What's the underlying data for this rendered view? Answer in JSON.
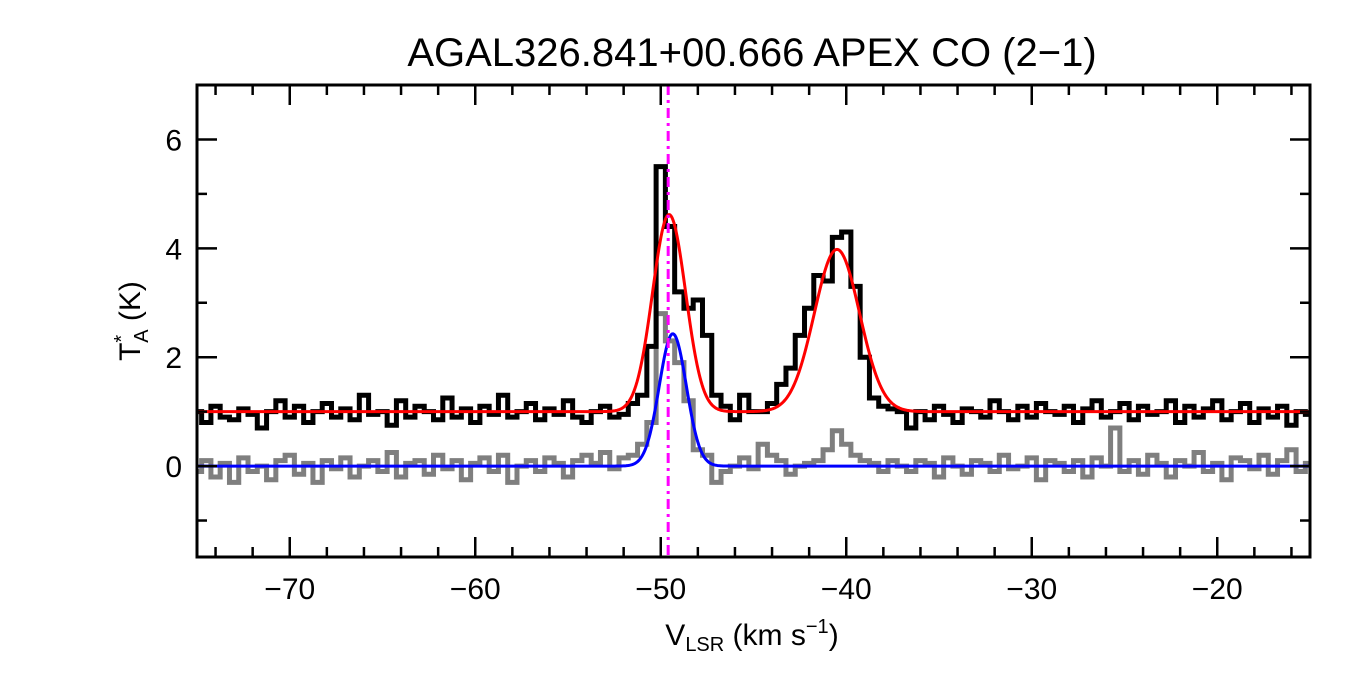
{
  "chart_data": {
    "type": "line",
    "title": "AGAL326.841+00.666  APEX CO (2−1)",
    "xlabel": {
      "main": "V",
      "sub": "LSR",
      "rest": " (km s",
      "sup": "−1",
      "end": ")"
    },
    "ylabel": {
      "main": "T",
      "sup": "*",
      "sub": "A",
      "rest": " (K)"
    },
    "xlim": [
      -75,
      -15
    ],
    "ylim": [
      -1.67,
      7
    ],
    "xticks": [
      -70,
      -60,
      -50,
      -40,
      -30,
      -20
    ],
    "xtick_labels": [
      "−70",
      "−60",
      "−50",
      "−40",
      "−30",
      "−20"
    ],
    "yticks": [
      0,
      2,
      4,
      6
    ],
    "ytick_labels": [
      "0",
      "2",
      "4",
      "6"
    ],
    "grid": false,
    "x_start": -75,
    "x_step": 0.5,
    "series": [
      {
        "kind": "histogram",
        "color": "#000000",
        "values": [
          1.0,
          0.8,
          1.1,
          0.9,
          0.85,
          1.05,
          0.95,
          0.7,
          1.0,
          1.2,
          0.9,
          1.1,
          0.8,
          1.0,
          1.15,
          0.9,
          1.05,
          0.85,
          1.3,
          0.95,
          1.0,
          0.75,
          1.2,
          0.9,
          1.1,
          1.0,
          0.85,
          1.25,
          0.9,
          1.05,
          0.8,
          1.1,
          0.95,
          1.3,
          0.9,
          1.0,
          1.15,
          0.85,
          1.05,
          0.95,
          1.2,
          0.9,
          0.8,
          1.0,
          1.1,
          0.9,
          0.95,
          1.15,
          1.3,
          2.2,
          5.5,
          4.4,
          3.2,
          2.9,
          3.05,
          2.4,
          1.3,
          1.1,
          0.85,
          1.3,
          1.0,
          1.0,
          1.15,
          1.5,
          1.8,
          2.4,
          2.9,
          3.5,
          3.4,
          4.2,
          4.3,
          3.3,
          2.0,
          1.25,
          1.1,
          1.05,
          1.0,
          0.7,
          1.0,
          0.85,
          1.1,
          0.95,
          0.8,
          1.05,
          1.0,
          0.9,
          1.2,
          1.0,
          0.85,
          1.1,
          0.9,
          1.15,
          1.0,
          0.95,
          1.1,
          0.8,
          1.05,
          1.2,
          0.9,
          1.0,
          1.15,
          0.85,
          1.1,
          0.95,
          1.0,
          1.2,
          0.8,
          1.1,
          0.9,
          1.05,
          1.2,
          0.85,
          1.0,
          1.15,
          0.8,
          1.05,
          0.9,
          1.1,
          0.75,
          1.0,
          0.95
        ]
      },
      {
        "kind": "histogram",
        "color": "#7f7f7f",
        "values": [
          -0.1,
          0.1,
          -0.2,
          0.05,
          -0.3,
          0.15,
          -0.1,
          0.0,
          -0.25,
          0.1,
          0.2,
          -0.15,
          0.05,
          -0.3,
          0.1,
          -0.05,
          0.15,
          -0.2,
          0.0,
          0.1,
          -0.1,
          0.25,
          -0.2,
          0.05,
          0.1,
          -0.15,
          0.2,
          -0.05,
          0.1,
          -0.25,
          0.05,
          0.15,
          -0.1,
          0.2,
          -0.3,
          0.0,
          0.1,
          -0.1,
          0.15,
          0.05,
          -0.2,
          0.1,
          0.2,
          0.05,
          0.25,
          -0.05,
          0.15,
          0.2,
          0.4,
          0.8,
          2.8,
          2.3,
          1.9,
          1.2,
          0.3,
          0.2,
          -0.3,
          -0.1,
          0.0,
          0.15,
          -0.05,
          0.4,
          0.2,
          0.1,
          -0.15,
          0.0,
          0.05,
          0.1,
          0.3,
          0.65,
          0.4,
          0.2,
          0.1,
          0.05,
          -0.1,
          0.1,
          0.0,
          -0.1,
          0.1,
          0.05,
          -0.2,
          0.15,
          0.0,
          -0.15,
          0.1,
          0.05,
          -0.1,
          0.2,
          -0.05,
          0.0,
          0.15,
          -0.25,
          0.1,
          0.05,
          -0.1,
          0.1,
          -0.2,
          0.15,
          0.0,
          0.7,
          -0.1,
          0.1,
          -0.15,
          0.2,
          0.05,
          -0.2,
          0.1,
          0.0,
          0.25,
          -0.1,
          0.05,
          -0.25,
          0.15,
          0.1,
          -0.05,
          0.2,
          -0.15,
          0.1,
          0.3,
          -0.1,
          0.05
        ]
      }
    ],
    "fits": [
      {
        "color": "#ff0000",
        "baseline": 1.0,
        "components": [
          {
            "amplitude": 3.62,
            "center": -49.55,
            "sigma": 0.89
          },
          {
            "amplitude": 2.98,
            "center": -40.5,
            "sigma": 1.22
          }
        ]
      },
      {
        "color": "#0000ff",
        "baseline": 0.0,
        "components": [
          {
            "amplitude": 2.43,
            "center": -49.35,
            "sigma": 0.73
          }
        ]
      }
    ],
    "vline": {
      "x": -49.6,
      "color": "#ff00ff",
      "style": "dash-dot"
    }
  }
}
